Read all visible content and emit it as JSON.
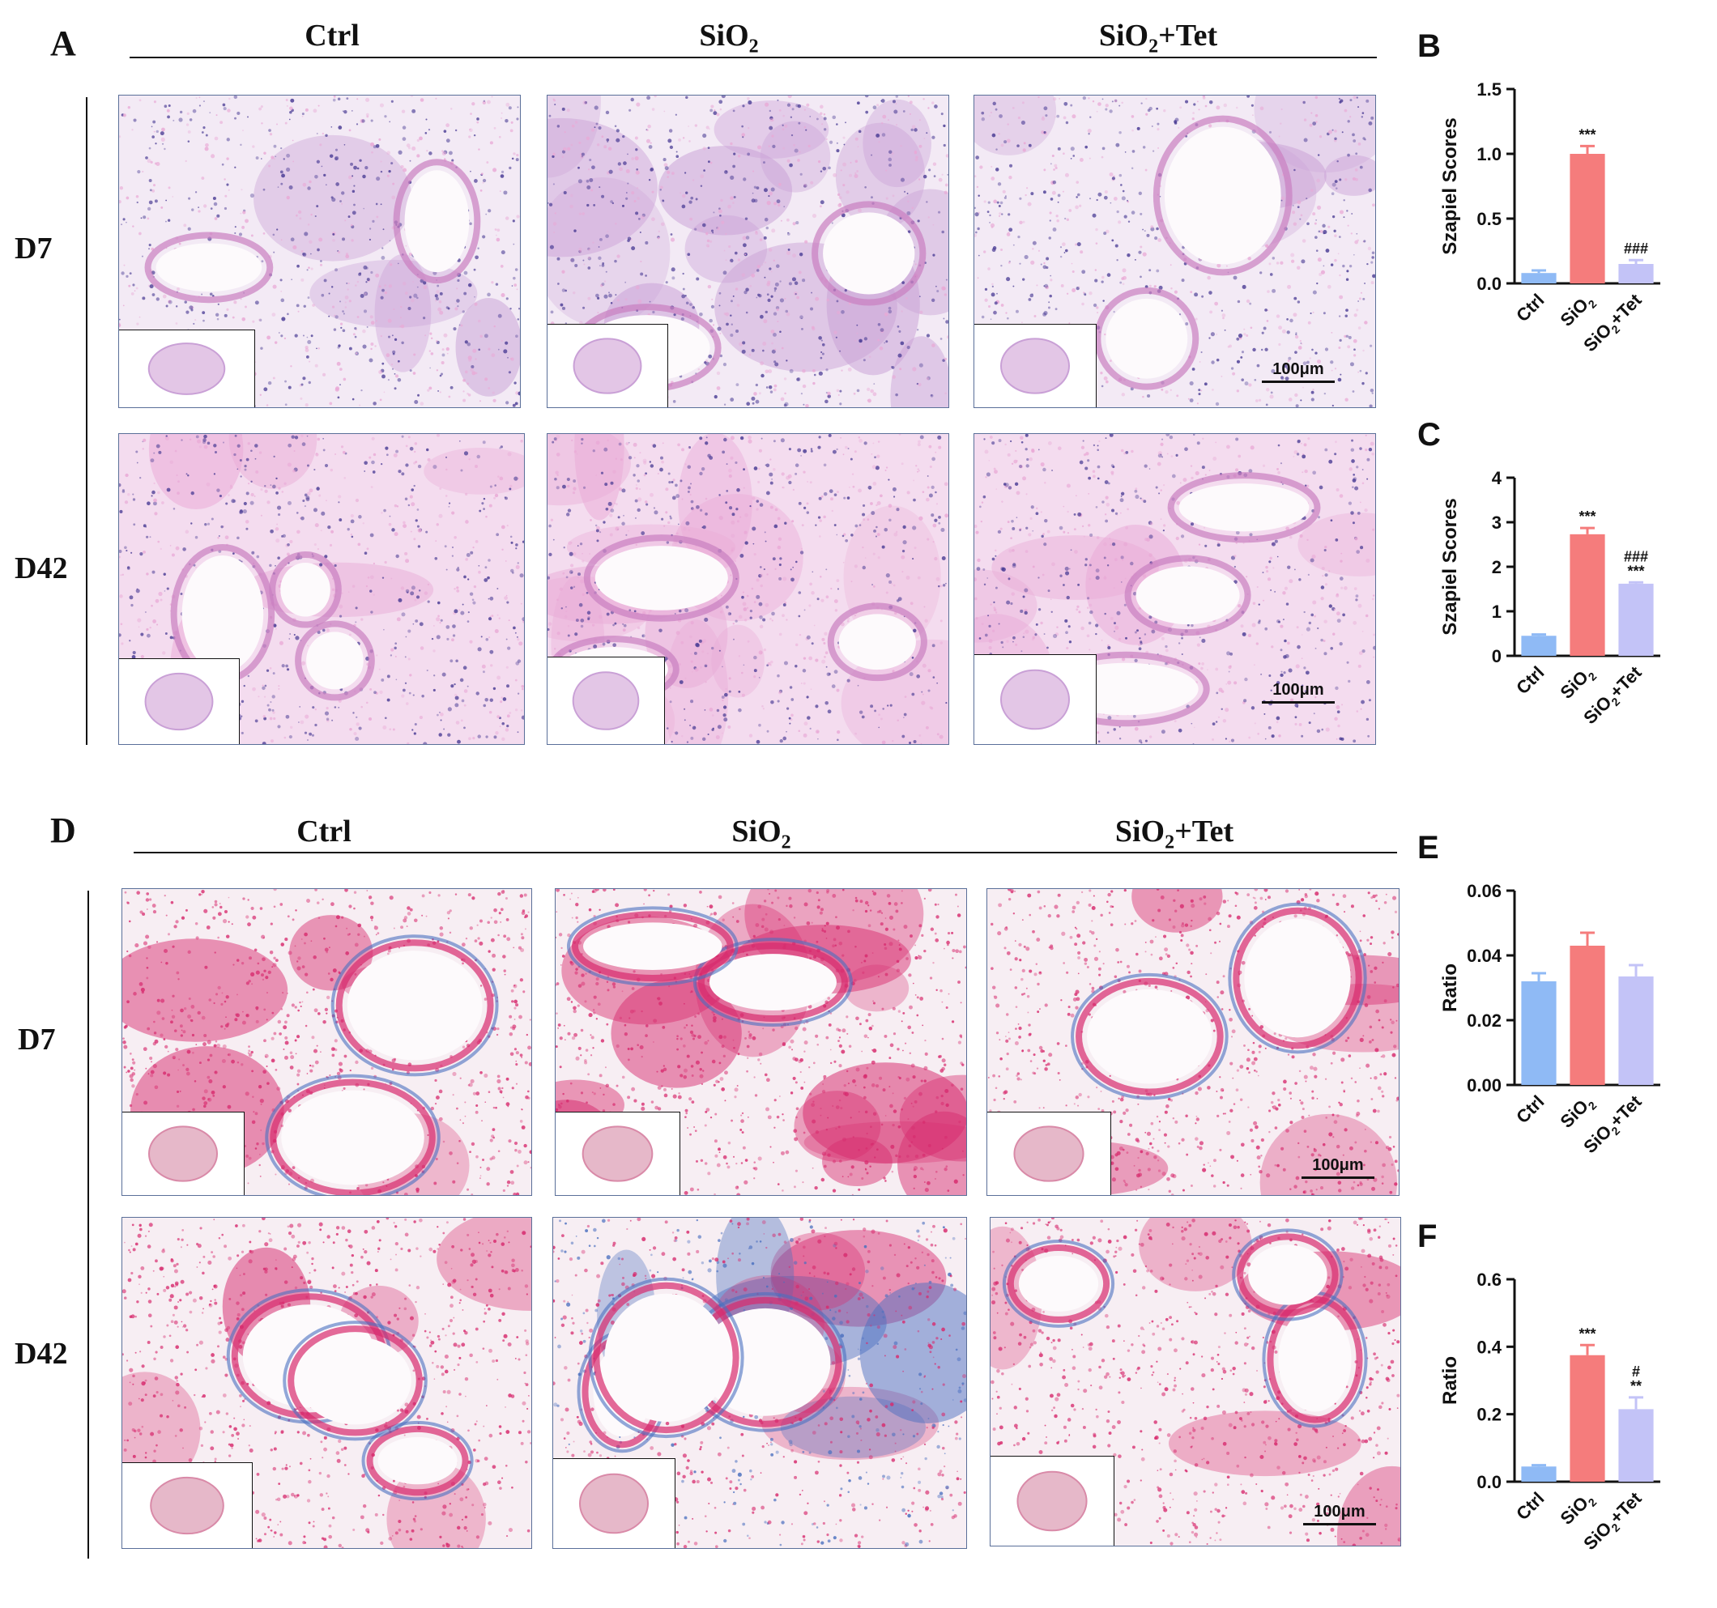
{
  "colors": {
    "he_light": "#f0e4f2",
    "he_dark": "#c9a0d6",
    "he_nuclei": "#4b3d95",
    "he_pink": "#e9a9d6",
    "masson_red": "#d72b6e",
    "masson_blue": "#4a6fbf",
    "bar_ctrl": "#8fbaf5",
    "bar_sio2": "#f57c7c",
    "bar_tet": "#c3c3f7"
  },
  "panelA": {
    "letter": "A",
    "columns": [
      {
        "main": "Ctrl",
        "sub": "",
        "suffix": ""
      },
      {
        "main": "SiO",
        "sub": "2",
        "suffix": ""
      },
      {
        "main": "SiO",
        "sub": "2",
        "suffix": "+Tet"
      }
    ],
    "rows": [
      "D7",
      "D42"
    ],
    "scale_label": "100μm"
  },
  "panelD": {
    "letter": "D",
    "columns": [
      {
        "main": "Ctrl",
        "sub": "",
        "suffix": ""
      },
      {
        "main": "SiO",
        "sub": "2",
        "suffix": ""
      },
      {
        "main": "SiO",
        "sub": "2",
        "suffix": "+Tet"
      }
    ],
    "rows": [
      "D7",
      "D42"
    ],
    "scale_label": "100μm"
  },
  "chart_data": [
    {
      "panel": "B",
      "type": "bar",
      "categories": [
        "Ctrl",
        "SiO2",
        "SiO2+Tet"
      ],
      "values": [
        0.08,
        1.0,
        0.15
      ],
      "errors": [
        0.02,
        0.06,
        0.03
      ],
      "annotations": [
        "",
        "***",
        "###"
      ],
      "ylabel": "Szapiel Scores",
      "ylim": [
        0,
        1.5
      ],
      "yticks": [
        "0.0",
        "0.5",
        "1.0",
        "1.5"
      ]
    },
    {
      "panel": "C",
      "type": "bar",
      "categories": [
        "Ctrl",
        "SiO2",
        "SiO2+Tet"
      ],
      "values": [
        0.45,
        2.73,
        1.62
      ],
      "errors": [
        0.03,
        0.14,
        0.03
      ],
      "annotations": [
        "",
        "***",
        "###\n***"
      ],
      "ylabel": "Szapiel Scores",
      "ylim": [
        0,
        4
      ],
      "yticks": [
        "0",
        "1",
        "2",
        "3",
        "4"
      ]
    },
    {
      "panel": "E",
      "type": "bar",
      "categories": [
        "Ctrl",
        "SiO2",
        "SiO2+Tet"
      ],
      "values": [
        0.032,
        0.043,
        0.0335
      ],
      "errors": [
        0.0025,
        0.004,
        0.0035
      ],
      "annotations": [
        "",
        "",
        ""
      ],
      "ylabel": "Ratio",
      "ylim": [
        0,
        0.06
      ],
      "yticks": [
        "0.00",
        "0.02",
        "0.04",
        "0.06"
      ]
    },
    {
      "panel": "F",
      "type": "bar",
      "categories": [
        "Ctrl",
        "SiO2",
        "SiO2+Tet"
      ],
      "values": [
        0.045,
        0.375,
        0.215
      ],
      "errors": [
        0.004,
        0.03,
        0.035
      ],
      "annotations": [
        "",
        "***",
        "#\n**"
      ],
      "ylabel": "Ratio",
      "ylim": [
        0,
        0.6
      ],
      "yticks": [
        "0.0",
        "0.2",
        "0.4",
        "0.6"
      ]
    }
  ]
}
